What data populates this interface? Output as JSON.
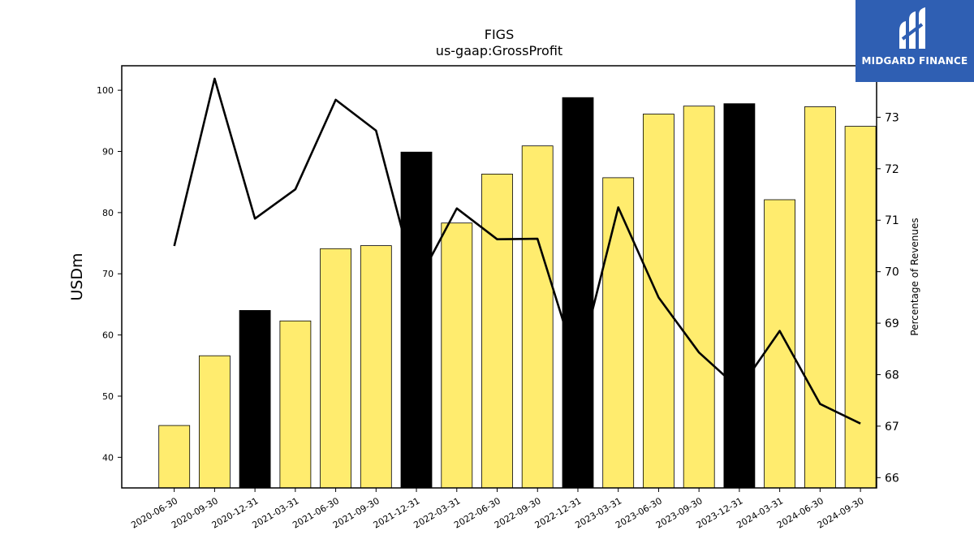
{
  "chart_data": {
    "type": "bar",
    "title": "FIGS",
    "subtitle": "us-gaap:GrossProfit",
    "ylabel": "USDm",
    "y2label": "Percentage of Revenues",
    "ylim": [
      35,
      104
    ],
    "y2lim": [
      65.8,
      74.0
    ],
    "yticks": [
      40,
      50,
      60,
      70,
      80,
      90,
      100
    ],
    "y2ticks": [
      66,
      67,
      68,
      69,
      70,
      71,
      72,
      73
    ],
    "categories": [
      "2020-06-30",
      "2020-09-30",
      "2020-12-31",
      "2021-03-31",
      "2021-06-30",
      "2021-09-30",
      "2021-12-31",
      "2022-03-31",
      "2022-06-30",
      "2022-09-30",
      "2022-12-31",
      "2023-03-31",
      "2023-06-30",
      "2023-09-30",
      "2023-12-31",
      "2024-03-31",
      "2024-06-30",
      "2024-09-30"
    ],
    "series": [
      {
        "values": [
          45.2,
          56.6,
          64.0,
          62.3,
          74.1,
          74.6,
          89.9,
          78.3,
          86.3,
          90.9,
          98.8,
          85.7,
          96.1,
          97.4,
          97.8,
          82.1,
          97.3,
          94.1
        ],
        "colors": [
          "#ffec6e",
          "#ffec6e",
          "#000000",
          "#ffec6e",
          "#ffec6e",
          "#ffec6e",
          "#000000",
          "#ffec6e",
          "#ffec6e",
          "#ffec6e",
          "#000000",
          "#ffec6e",
          "#ffec6e",
          "#ffec6e",
          "#000000",
          "#ffec6e",
          "#ffec6e",
          "#ffec6e"
        ]
      },
      {
        "type": "line",
        "axis": "y2",
        "color": "#000000",
        "values": [
          70.5,
          73.75,
          71.03,
          71.6,
          73.34,
          72.74,
          69.75,
          71.23,
          70.63,
          70.64,
          68.12,
          71.25,
          69.5,
          68.43,
          67.72,
          68.85,
          67.43,
          67.05
        ]
      }
    ],
    "grid": false,
    "legend": "none"
  },
  "branding": {
    "logo_text": "MIDGARD FINANCE",
    "logo_color": "#2f5fb3"
  }
}
